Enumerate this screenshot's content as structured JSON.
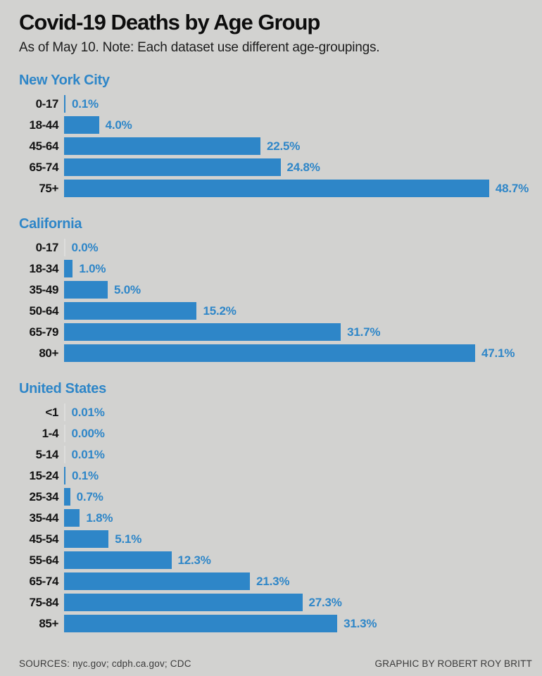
{
  "page": {
    "title": "Covid-19 Deaths by Age Group",
    "subtitle": "As of May 10. Note: Each dataset use different age-groupings.",
    "footer_left": "SOURCES: nyc.gov; cdph.ca.gov; CDC",
    "footer_right": "GRAPHIC BY ROBERT ROY BRITT"
  },
  "colors": {
    "background": "#d2d2d0",
    "bar_blue": "#2e86c8",
    "near_zero_tick": "#dddddc",
    "category_label": "#121212",
    "footer_text": "#3a3a3a"
  },
  "chart_data": [
    {
      "type": "bar",
      "title": "New York City",
      "orientation": "horizontal",
      "unit": "%",
      "xlim": [
        0,
        54
      ],
      "grid": false,
      "legend": "none",
      "categories": [
        "0-17",
        "18-44",
        "45-64",
        "65-74",
        "75+"
      ],
      "values": [
        0.1,
        4.0,
        22.5,
        24.8,
        48.7
      ],
      "labels": [
        "0.1%",
        "4.0%",
        "22.5%",
        "24.8%",
        "48.7%"
      ]
    },
    {
      "type": "bar",
      "title": "California",
      "orientation": "horizontal",
      "unit": "%",
      "xlim": [
        0,
        54
      ],
      "grid": false,
      "legend": "none",
      "categories": [
        "0-17",
        "18-34",
        "35-49",
        "50-64",
        "65-79",
        "80+"
      ],
      "values": [
        0.0,
        1.0,
        5.0,
        15.2,
        31.7,
        47.1
      ],
      "labels": [
        "0.0%",
        "1.0%",
        "5.0%",
        "15.2%",
        "31.7%",
        "47.1%"
      ]
    },
    {
      "type": "bar",
      "title": "United States",
      "orientation": "horizontal",
      "unit": "%",
      "xlim": [
        0,
        54
      ],
      "grid": false,
      "legend": "none",
      "categories": [
        "<1",
        "1-4",
        "5-14",
        "15-24",
        "25-34",
        "35-44",
        "45-54",
        "55-64",
        "65-74",
        "75-84",
        "85+"
      ],
      "values": [
        0.01,
        0.0,
        0.01,
        0.1,
        0.7,
        1.8,
        5.1,
        12.3,
        21.3,
        27.3,
        31.3
      ],
      "labels": [
        "0.01%",
        "0.00%",
        "0.01%",
        "0.1%",
        "0.7%",
        "1.8%",
        "5.1%",
        "12.3%",
        "21.3%",
        "27.3%",
        "31.3%"
      ]
    }
  ]
}
